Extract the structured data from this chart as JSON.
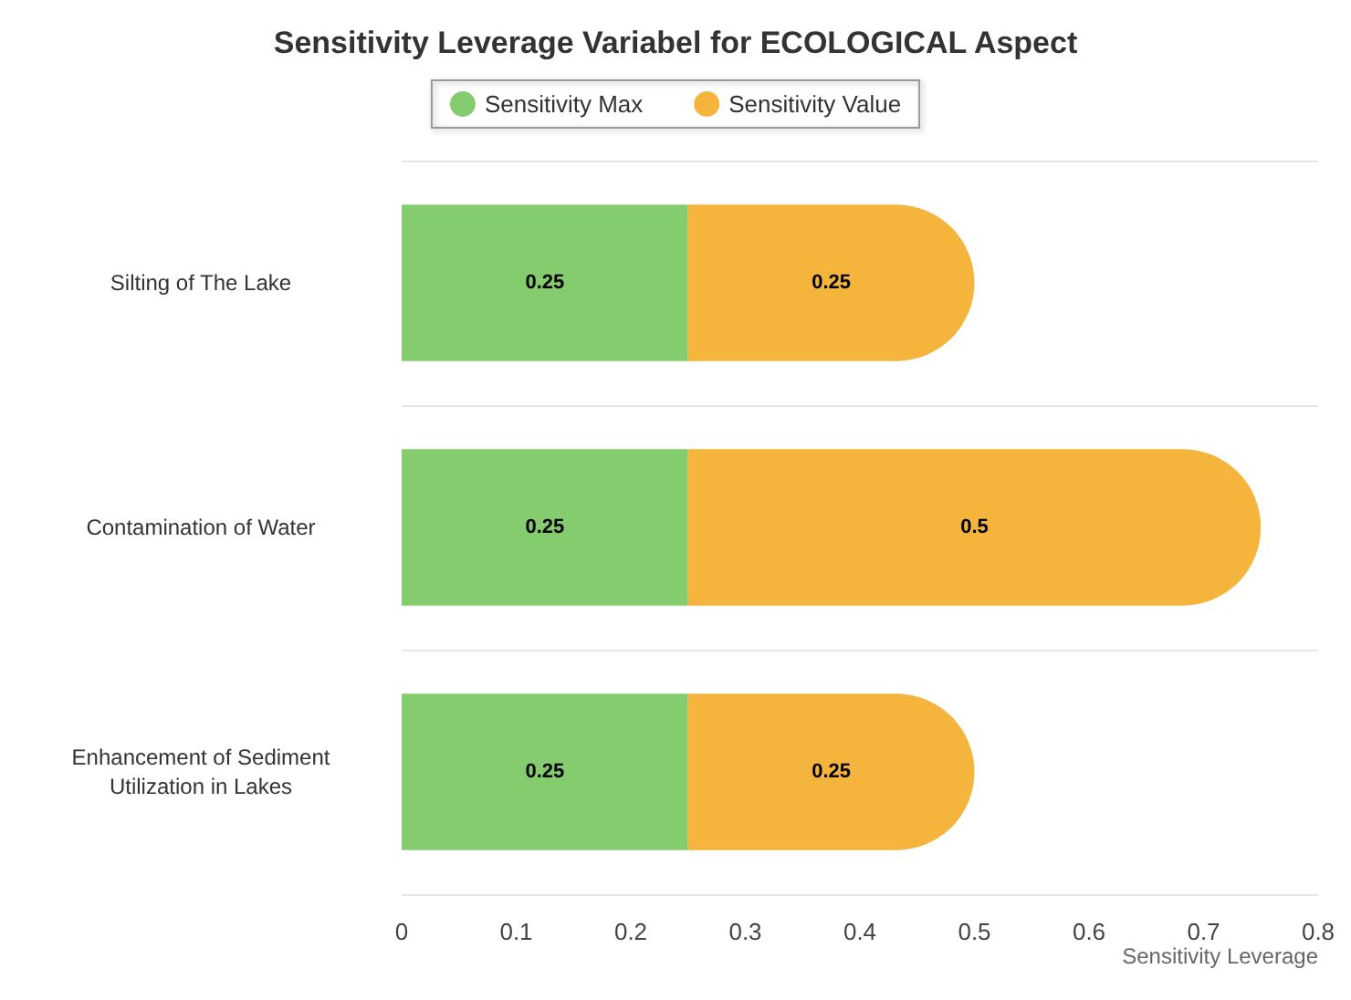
{
  "chart_data": {
    "type": "bar",
    "title": "Sensitivity Leverage Variabel for ECOLOGICAL Aspect",
    "xlabel": "Sensitivity Leverage",
    "orientation": "horizontal",
    "stacked": true,
    "categories": [
      "Silting of The Lake",
      "Contamination of Water",
      "Enhancement of Sediment\nUtilization in Lakes"
    ],
    "series": [
      {
        "name": "Sensitivity Max",
        "color": "#85cc6e",
        "values": [
          0.25,
          0.25,
          0.25
        ]
      },
      {
        "name": "Sensitivity Value",
        "color": "#f5b53d",
        "values": [
          0.25,
          0.5,
          0.25
        ]
      }
    ],
    "xlim": [
      0,
      0.8
    ],
    "xticks": [
      0,
      0.1,
      0.2,
      0.3,
      0.4,
      0.5,
      0.6,
      0.7,
      0.8
    ],
    "grid": "y",
    "legend": "top",
    "data_labels": true
  }
}
